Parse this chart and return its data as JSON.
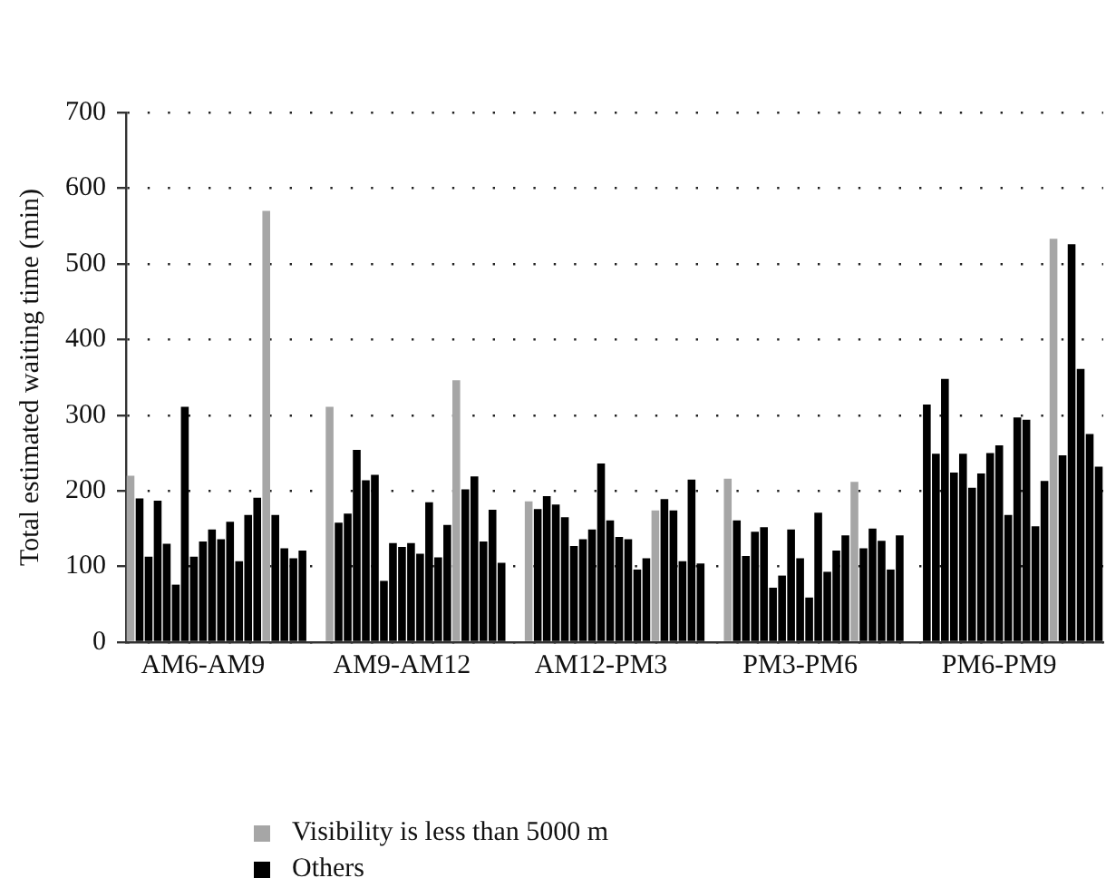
{
  "chart_data": {
    "type": "bar",
    "ylabel": "Total estimated waiting time (min)",
    "categories": [
      null,
      null,
      null,
      null,
      null,
      null,
      null,
      null,
      "AM6-AM9",
      null,
      null,
      null,
      null,
      null,
      null,
      null,
      null,
      null,
      null,
      null,
      null,
      null,
      null,
      null,
      null,
      null,
      null,
      null,
      null,
      null,
      "AM9-AM12",
      null,
      null,
      null,
      null,
      null,
      null,
      null,
      null,
      null,
      null,
      null,
      null,
      null,
      null,
      null,
      null,
      null,
      null,
      null,
      null,
      null,
      "AM12-PM3",
      null,
      null,
      null,
      null,
      null,
      null,
      null,
      null,
      null,
      null,
      null,
      null,
      null,
      null,
      null,
      null,
      null,
      null,
      null,
      null,
      null,
      "PM3-PM6",
      null,
      null,
      null,
      null,
      null,
      null,
      null,
      null,
      null,
      null,
      null,
      null,
      null,
      null,
      null,
      null,
      null,
      null,
      null,
      null,
      null,
      "PM6-PM9",
      null,
      null,
      null,
      null,
      null,
      null,
      null,
      null,
      null,
      null,
      null
    ],
    "series": [
      {
        "name": "Visibility is less than 5000 m",
        "color": "#a6a6a6",
        "values": [
          220,
          null,
          null,
          null,
          null,
          null,
          null,
          null,
          null,
          null,
          null,
          null,
          null,
          null,
          null,
          570,
          null,
          null,
          null,
          null,
          null,
          null,
          311,
          null,
          null,
          null,
          null,
          null,
          null,
          null,
          null,
          null,
          null,
          null,
          null,
          null,
          346,
          null,
          null,
          null,
          null,
          null,
          null,
          null,
          186,
          null,
          null,
          null,
          null,
          null,
          null,
          null,
          null,
          null,
          null,
          null,
          null,
          null,
          174,
          null,
          null,
          null,
          null,
          null,
          null,
          null,
          216,
          null,
          null,
          null,
          null,
          null,
          null,
          null,
          null,
          null,
          null,
          null,
          null,
          null,
          212,
          null,
          null,
          null,
          null,
          null,
          null,
          null,
          null,
          null,
          null,
          null,
          null,
          null,
          null,
          null,
          null,
          null,
          null,
          null,
          null,
          null,
          533,
          null,
          null,
          null,
          null,
          null
        ]
      },
      {
        "name": "Others",
        "color": "#000000",
        "values": [
          null,
          190,
          113,
          187,
          130,
          76,
          311,
          113,
          133,
          149,
          136,
          159,
          107,
          168,
          191,
          null,
          168,
          124,
          111,
          121,
          null,
          null,
          null,
          158,
          170,
          254,
          214,
          221,
          81,
          131,
          126,
          131,
          117,
          185,
          112,
          155,
          null,
          202,
          219,
          133,
          175,
          105,
          null,
          null,
          null,
          176,
          193,
          182,
          165,
          127,
          136,
          149,
          236,
          161,
          139,
          136,
          96,
          111,
          null,
          189,
          174,
          107,
          215,
          104,
          null,
          null,
          null,
          161,
          114,
          146,
          152,
          72,
          88,
          149,
          111,
          59,
          171,
          93,
          121,
          141,
          null,
          124,
          150,
          134,
          96,
          141,
          null,
          null,
          314,
          249,
          348,
          224,
          249,
          204,
          223,
          250,
          260,
          168,
          297,
          294,
          153,
          213,
          null,
          247,
          526,
          361,
          275,
          232
        ]
      }
    ],
    "ylim": [
      0,
      700
    ],
    "yticks": [
      0,
      100,
      200,
      300,
      400,
      500,
      600,
      700
    ],
    "grid": "y",
    "legend": "bottom left"
  }
}
